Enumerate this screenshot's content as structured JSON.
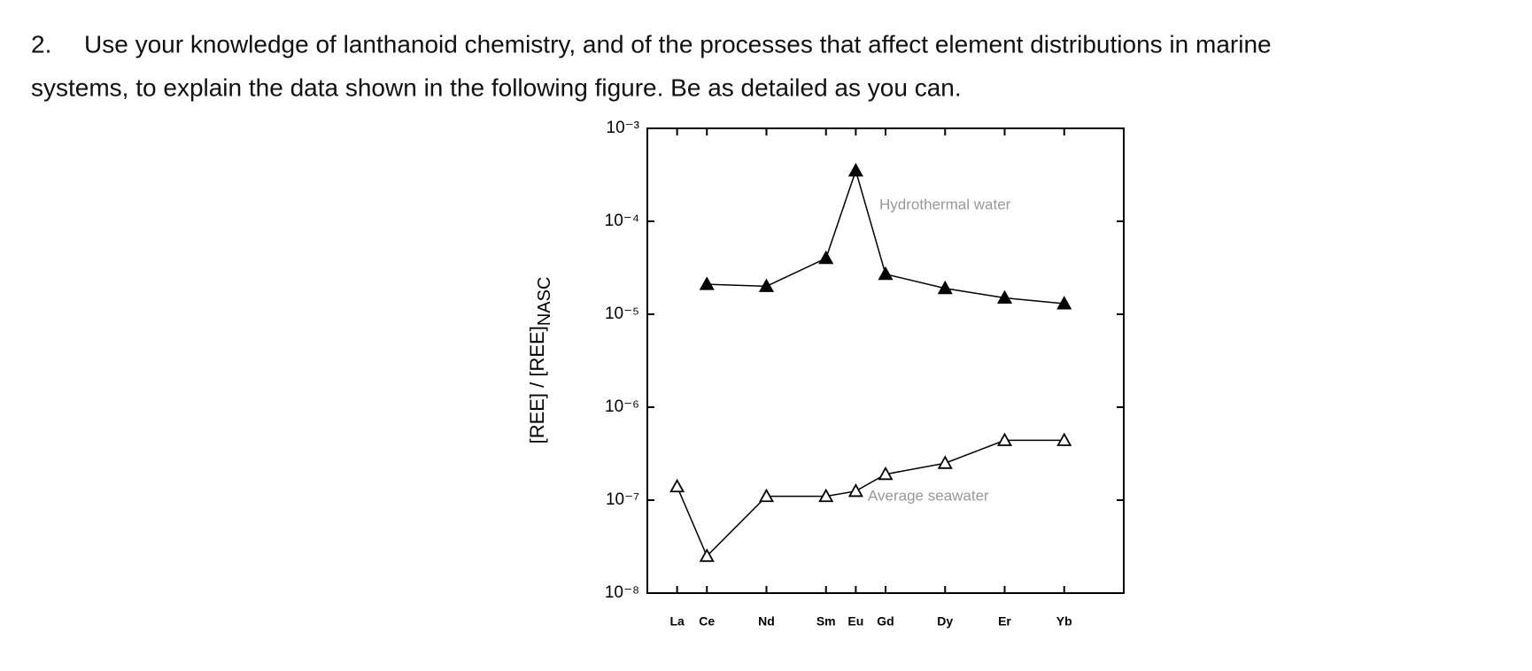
{
  "question": {
    "number": "2.",
    "lines": [
      "Use your knowledge of lanthanoid chemistry, and of the processes that affect element distributions in marine",
      "systems, to explain the data shown in the following figure. Be as detailed as you can."
    ]
  },
  "chart_data": {
    "type": "line",
    "log_y": true,
    "y_label": "[REE] / [REE]",
    "y_label_subscript": "NASC",
    "x": [
      57,
      58,
      60,
      62,
      63,
      64,
      66,
      68,
      70
    ],
    "xlim": [
      56,
      72
    ],
    "xticks": [
      {
        "value": 57,
        "label": "La"
      },
      {
        "value": 58,
        "label": "Ce"
      },
      {
        "value": 60,
        "label": "Nd"
      },
      {
        "value": 62,
        "label": "Sm"
      },
      {
        "value": 63,
        "label": "Eu"
      },
      {
        "value": 64,
        "label": "Gd"
      },
      {
        "value": 66,
        "label": "Dy"
      },
      {
        "value": 68,
        "label": "Er"
      },
      {
        "value": 70,
        "label": "Yb"
      }
    ],
    "ylim": [
      1e-08,
      0.001
    ],
    "yticks": [
      {
        "value": 1e-08,
        "label": "10⁻⁸"
      },
      {
        "value": 1e-07,
        "label": "10⁻⁷"
      },
      {
        "value": 1e-06,
        "label": "10⁻⁶"
      },
      {
        "value": 1e-05,
        "label": "10⁻⁵"
      },
      {
        "value": 0.0001,
        "label": "10⁻⁴"
      },
      {
        "value": 0.001,
        "label": "10⁻³"
      }
    ],
    "series": [
      {
        "name": "Hydrothermal water",
        "color": "#000000",
        "marker": "filled",
        "values": [
          null,
          2.1e-05,
          2e-05,
          4e-05,
          0.00035,
          2.7e-05,
          1.9e-05,
          1.5e-05,
          1.3e-05
        ]
      },
      {
        "name": "Average seawater",
        "color": "#000000",
        "marker": "open",
        "values": [
          1.4e-07,
          2.5e-08,
          1.1e-07,
          1.1e-07,
          1.25e-07,
          1.9e-07,
          2.5e-07,
          4.4e-07,
          4.4e-07
        ]
      }
    ]
  }
}
